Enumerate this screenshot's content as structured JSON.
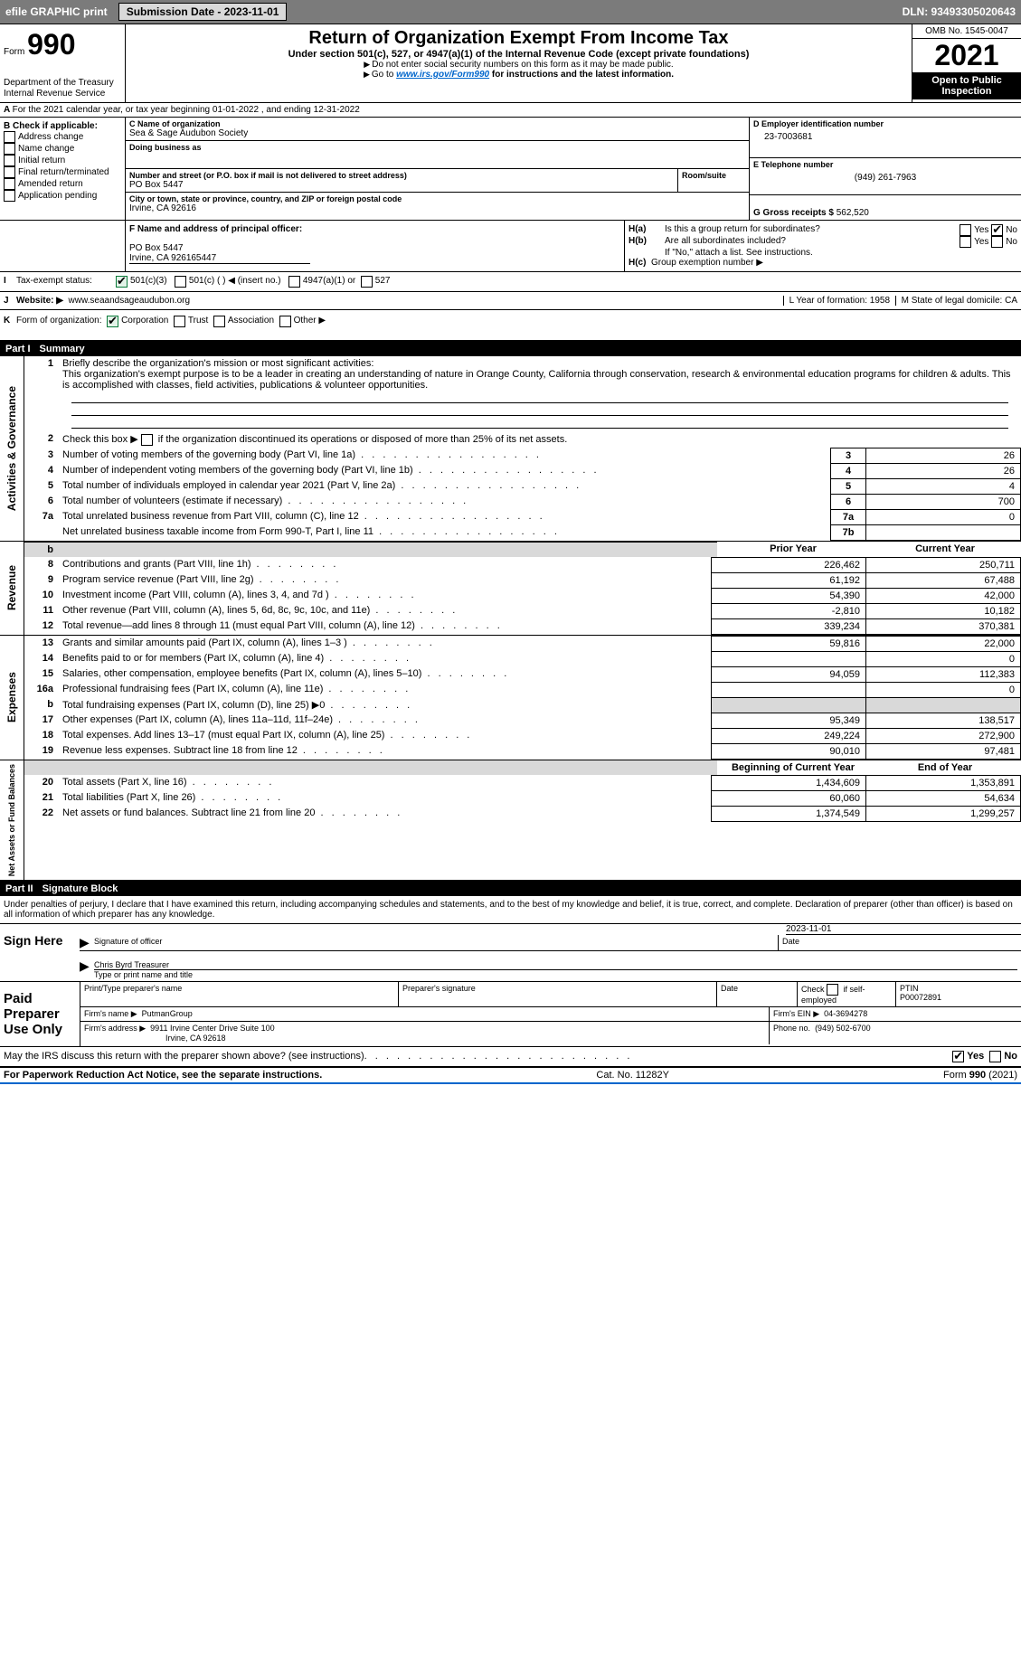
{
  "top": {
    "efile": "efile GRAPHIC print",
    "submission": "Submission Date - 2023-11-01",
    "dln": "DLN: 93493305020643"
  },
  "header": {
    "form_label": "Form",
    "form_num": "990",
    "dept": "Department of the Treasury",
    "irs": "Internal Revenue Service",
    "title": "Return of Organization Exempt From Income Tax",
    "sub1": "Under section 501(c), 527, or 4947(a)(1) of the Internal Revenue Code (except private foundations)",
    "sub2": "Do not enter social security numbers on this form as it may be made public.",
    "sub3_pre": "Go to ",
    "sub3_link": "www.irs.gov/Form990",
    "sub3_post": " for instructions and the latest information.",
    "omb": "OMB No. 1545-0047",
    "year": "2021",
    "open": "Open to Public Inspection"
  },
  "lineA": "For the 2021 calendar year, or tax year beginning 01-01-2022   , and ending 12-31-2022",
  "B": {
    "label": "B Check if applicable:",
    "opts": [
      "Address change",
      "Name change",
      "Initial return",
      "Final return/terminated",
      "Amended return",
      "Application pending"
    ]
  },
  "C": {
    "name_label": "C Name of organization",
    "name": "Sea & Sage Audubon Society",
    "dba_label": "Doing business as",
    "street_label": "Number and street (or P.O. box if mail is not delivered to street address)",
    "room_label": "Room/suite",
    "street": "PO Box 5447",
    "city_label": "City or town, state or province, country, and ZIP or foreign postal code",
    "city": "Irvine, CA  92616"
  },
  "D": {
    "label": "D Employer identification number",
    "value": "23-7003681"
  },
  "E": {
    "label": "E Telephone number",
    "value": "(949) 261-7963"
  },
  "G": {
    "label": "G Gross receipts $",
    "value": "562,520"
  },
  "F": {
    "label": "F  Name and address of principal officer:",
    "addr1": "PO Box 5447",
    "addr2": "Irvine, CA  926165447"
  },
  "H": {
    "a": "Is this a group return for subordinates?",
    "b": "Are all subordinates included?",
    "b_note": "If \"No,\" attach a list. See instructions.",
    "c": "Group exemption number ▶",
    "yes": "Yes",
    "no": "No"
  },
  "I": {
    "label": "Tax-exempt status:",
    "opt1": "501(c)(3)",
    "opt2": "501(c) (   ) ◀ (insert no.)",
    "opt3": "4947(a)(1) or",
    "opt4": "527"
  },
  "J": {
    "label": "Website: ▶",
    "value": "www.seaandsageaudubon.org"
  },
  "K": {
    "label": "Form of organization:",
    "opts": [
      "Corporation",
      "Trust",
      "Association",
      "Other ▶"
    ]
  },
  "L": {
    "label": "L Year of formation:",
    "value": "1958"
  },
  "M": {
    "label": "M State of legal domicile:",
    "value": "CA"
  },
  "parts": {
    "p1": "Part I",
    "p1_title": "Summary",
    "p2": "Part II",
    "p2_title": "Signature Block"
  },
  "summary": {
    "q1": "Briefly describe the organization's mission or most significant activities:",
    "q1_text": "This organization's exempt purpose is to be a leader in creating an understanding of nature in Orange County, California through conservation, research & environmental education programs for children & adults. This is accomplished with classes, field activities, publications & volunteer opportunities.",
    "q2": "Check this box ▶        if the organization discontinued its operations or disposed of more than 25% of its net assets.",
    "side1": "Activities & Governance",
    "side2": "Revenue",
    "side3": "Expenses",
    "side4": "Net Assets or Fund Balances",
    "col_prior": "Prior Year",
    "col_curr": "Current Year",
    "col_beg": "Beginning of Current Year",
    "col_end": "End of Year",
    "rows_gov": [
      {
        "n": "3",
        "t": "Number of voting members of the governing body (Part VI, line 1a)",
        "box": "3",
        "v": "26"
      },
      {
        "n": "4",
        "t": "Number of independent voting members of the governing body (Part VI, line 1b)",
        "box": "4",
        "v": "26"
      },
      {
        "n": "5",
        "t": "Total number of individuals employed in calendar year 2021 (Part V, line 2a)",
        "box": "5",
        "v": "4"
      },
      {
        "n": "6",
        "t": "Total number of volunteers (estimate if necessary)",
        "box": "6",
        "v": "700"
      },
      {
        "n": "7a",
        "t": "Total unrelated business revenue from Part VIII, column (C), line 12",
        "box": "7a",
        "v": "0"
      },
      {
        "n": "",
        "t": "Net unrelated business taxable income from Form 990-T, Part I, line 11",
        "box": "7b",
        "v": ""
      }
    ],
    "rows_rev": [
      {
        "n": "8",
        "t": "Contributions and grants (Part VIII, line 1h)",
        "p": "226,462",
        "c": "250,711"
      },
      {
        "n": "9",
        "t": "Program service revenue (Part VIII, line 2g)",
        "p": "61,192",
        "c": "67,488"
      },
      {
        "n": "10",
        "t": "Investment income (Part VIII, column (A), lines 3, 4, and 7d )",
        "p": "54,390",
        "c": "42,000"
      },
      {
        "n": "11",
        "t": "Other revenue (Part VIII, column (A), lines 5, 6d, 8c, 9c, 10c, and 11e)",
        "p": "-2,810",
        "c": "10,182"
      },
      {
        "n": "12",
        "t": "Total revenue—add lines 8 through 11 (must equal Part VIII, column (A), line 12)",
        "p": "339,234",
        "c": "370,381"
      }
    ],
    "rows_exp": [
      {
        "n": "13",
        "t": "Grants and similar amounts paid (Part IX, column (A), lines 1–3 )",
        "p": "59,816",
        "c": "22,000"
      },
      {
        "n": "14",
        "t": "Benefits paid to or for members (Part IX, column (A), line 4)",
        "p": "",
        "c": "0"
      },
      {
        "n": "15",
        "t": "Salaries, other compensation, employee benefits (Part IX, column (A), lines 5–10)",
        "p": "94,059",
        "c": "112,383"
      },
      {
        "n": "16a",
        "t": "Professional fundraising fees (Part IX, column (A), line 11e)",
        "p": "",
        "c": "0"
      },
      {
        "n": "b",
        "t": "Total fundraising expenses (Part IX, column (D), line 25) ▶0",
        "p": "shade",
        "c": "shade"
      },
      {
        "n": "17",
        "t": "Other expenses (Part IX, column (A), lines 11a–11d, 11f–24e)",
        "p": "95,349",
        "c": "138,517"
      },
      {
        "n": "18",
        "t": "Total expenses. Add lines 13–17 (must equal Part IX, column (A), line 25)",
        "p": "249,224",
        "c": "272,900"
      },
      {
        "n": "19",
        "t": "Revenue less expenses. Subtract line 18 from line 12",
        "p": "90,010",
        "c": "97,481"
      }
    ],
    "rows_net": [
      {
        "n": "20",
        "t": "Total assets (Part X, line 16)",
        "p": "1,434,609",
        "c": "1,353,891"
      },
      {
        "n": "21",
        "t": "Total liabilities (Part X, line 26)",
        "p": "60,060",
        "c": "54,634"
      },
      {
        "n": "22",
        "t": "Net assets or fund balances. Subtract line 21 from line 20",
        "p": "1,374,549",
        "c": "1,299,257"
      }
    ]
  },
  "sig": {
    "penalty": "Under penalties of perjury, I declare that I have examined this return, including accompanying schedules and statements, and to the best of my knowledge and belief, it is true, correct, and complete. Declaration of preparer (other than officer) is based on all information of which preparer has any knowledge.",
    "sign_here": "Sign Here",
    "sig_of_officer": "Signature of officer",
    "date": "Date",
    "sig_date": "2023-11-01",
    "name_title": "Chris Byrd Treasurer",
    "type_name": "Type or print name and title",
    "paid": "Paid Preparer Use Only",
    "h1": "Print/Type preparer's name",
    "h2": "Preparer's signature",
    "h3": "Date",
    "h4_pre": "Check",
    "h4_post": "if self-employed",
    "h5": "PTIN",
    "ptin": "P00072891",
    "firm_name_l": "Firm's name   ▶",
    "firm_name": "PutmanGroup",
    "firm_ein_l": "Firm's EIN ▶",
    "firm_ein": "04-3694278",
    "firm_addr_l": "Firm's address ▶",
    "firm_addr1": "9911 Irvine Center Drive Suite 100",
    "firm_addr2": "Irvine, CA  92618",
    "phone_l": "Phone no.",
    "phone": "(949) 502-6700",
    "discuss": "May the IRS discuss this return with the preparer shown above? (see instructions)"
  },
  "footer": {
    "left": "For Paperwork Reduction Act Notice, see the separate instructions.",
    "center": "Cat. No. 11282Y",
    "right_pre": "Form ",
    "right_b": "990",
    "right_post": " (2021)"
  }
}
